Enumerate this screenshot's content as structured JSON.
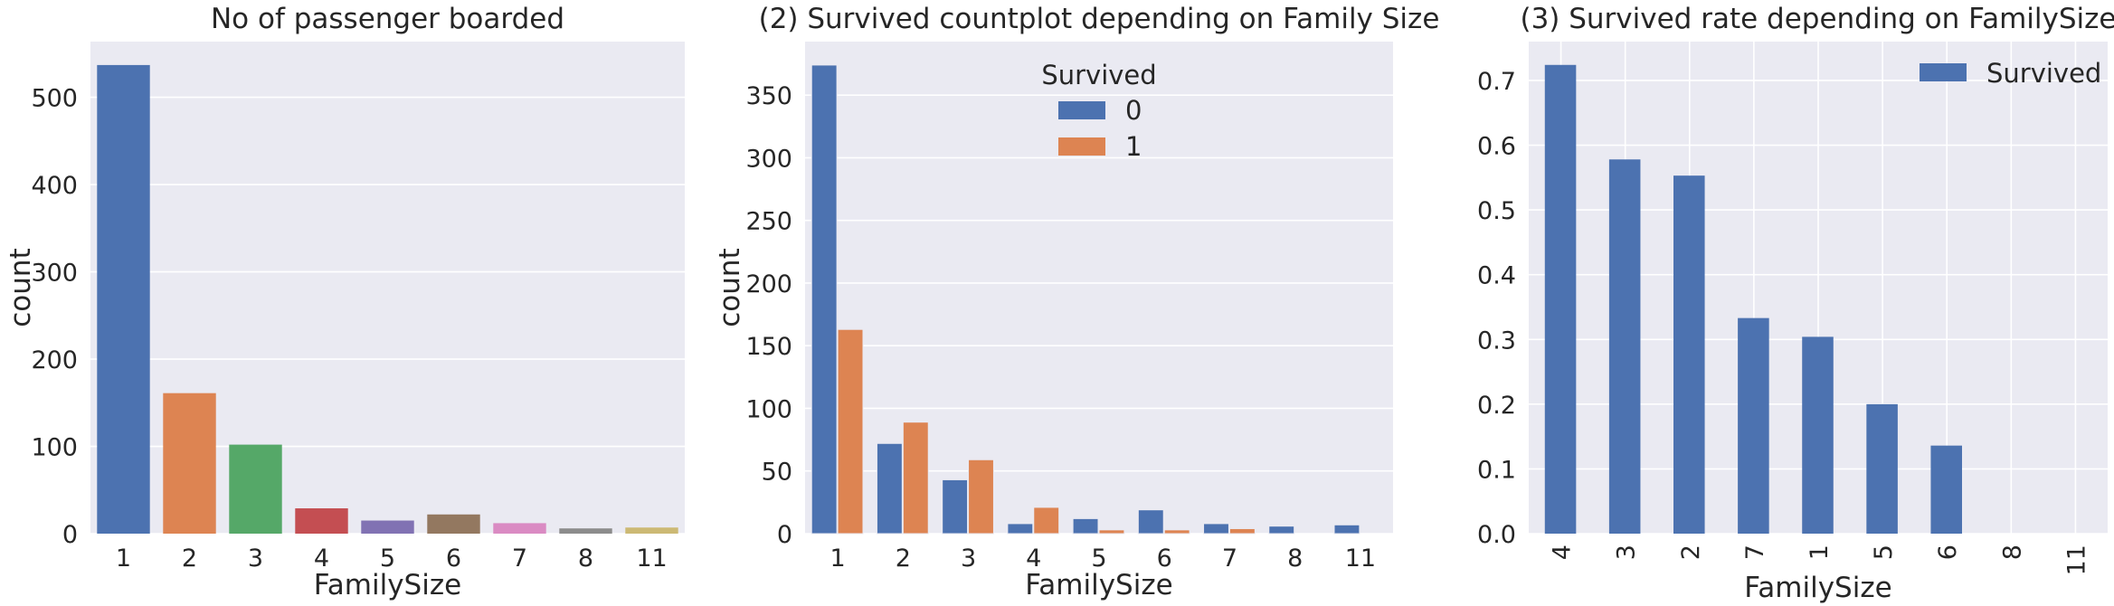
{
  "chart_data": [
    {
      "type": "bar",
      "title": "No of passenger boarded",
      "xlabel": "FamilySize",
      "ylabel": "count",
      "categories": [
        "1",
        "2",
        "3",
        "4",
        "5",
        "6",
        "7",
        "8",
        "11"
      ],
      "values": [
        537,
        161,
        102,
        29,
        15,
        22,
        12,
        6,
        7
      ],
      "bar_colors": [
        "#4c72b0",
        "#dd8452",
        "#55a868",
        "#c44e52",
        "#8172b3",
        "#937860",
        "#da8bc3",
        "#8c8c8c",
        "#ccb974"
      ],
      "ylim": [
        0,
        563.85
      ],
      "yticks": [
        0,
        100,
        200,
        300,
        400,
        500
      ],
      "grid": true
    },
    {
      "type": "bar",
      "title": "(2) Survived countplot depending on Family Size",
      "xlabel": "FamilySize",
      "ylabel": "count",
      "categories": [
        "1",
        "2",
        "3",
        "4",
        "5",
        "6",
        "7",
        "8",
        "11"
      ],
      "series": [
        {
          "name": "0",
          "color": "#4c72b0",
          "values": [
            374,
            72,
            43,
            8,
            12,
            19,
            8,
            6,
            7
          ]
        },
        {
          "name": "1",
          "color": "#dd8452",
          "values": [
            163,
            89,
            59,
            21,
            3,
            3,
            4,
            0,
            0
          ]
        }
      ],
      "legend": {
        "title": "Survived",
        "position": "top-center"
      },
      "ylim": [
        0,
        392.7
      ],
      "yticks": [
        0,
        50,
        100,
        150,
        200,
        250,
        300,
        350
      ],
      "grid": true
    },
    {
      "type": "bar",
      "title": "(3) Survived rate depending on FamilySize",
      "xlabel": "FamilySize",
      "ylabel": "",
      "categories": [
        "4",
        "3",
        "2",
        "7",
        "1",
        "5",
        "6",
        "8",
        "11"
      ],
      "series": [
        {
          "name": "Survived",
          "color": "#4c72b0",
          "values": [
            0.724,
            0.578,
            0.553,
            0.333,
            0.304,
            0.2,
            0.136,
            0.0,
            0.0
          ]
        }
      ],
      "legend": {
        "position": "top-right"
      },
      "ylim": [
        0,
        0.76
      ],
      "yticks": [
        0.0,
        0.1,
        0.2,
        0.3,
        0.4,
        0.5,
        0.6,
        0.7
      ],
      "ytick_labels": [
        "0.0",
        "0.1",
        "0.2",
        "0.3",
        "0.4",
        "0.5",
        "0.6",
        "0.7"
      ],
      "xtick_rotation": "vertical",
      "grid": true
    }
  ],
  "style": {
    "plot_background": "#eaeaf2",
    "grid_color": "#ffffff",
    "text_color": "#262626"
  }
}
